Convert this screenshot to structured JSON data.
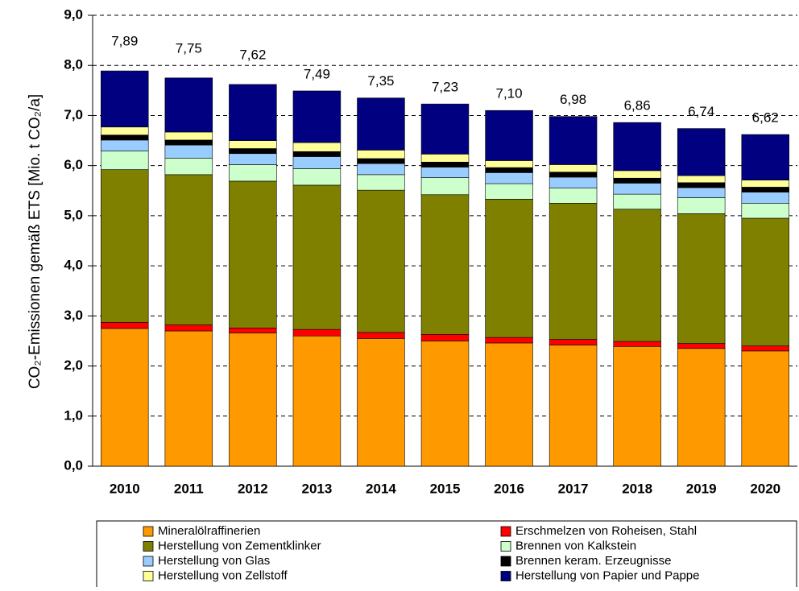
{
  "chart_data": {
    "type": "stacked_bar",
    "y_label": "CO₂-Emissionen gemäß ETS [Mio. t CO₂/a]",
    "categories": [
      "2010",
      "2011",
      "2012",
      "2013",
      "2014",
      "2015",
      "2016",
      "2017",
      "2018",
      "2019",
      "2020"
    ],
    "series": [
      {
        "name": "Mineralölraffinerien",
        "color": "#FF9900",
        "values": [
          2.75,
          2.7,
          2.66,
          2.6,
          2.55,
          2.5,
          2.46,
          2.42,
          2.39,
          2.35,
          2.3
        ]
      },
      {
        "name": "Erschmelzen von Roheisen, Stahl",
        "color": "#FF0000",
        "values": [
          0.12,
          0.12,
          0.1,
          0.13,
          0.12,
          0.13,
          0.11,
          0.11,
          0.1,
          0.1,
          0.1
        ]
      },
      {
        "name": "Herstellung von Zementklinker",
        "color": "#808000",
        "values": [
          3.05,
          3.0,
          2.93,
          2.88,
          2.84,
          2.79,
          2.76,
          2.72,
          2.64,
          2.59,
          2.55
        ]
      },
      {
        "name": "Brennen von Kalkstein",
        "color": "#CCFFCC",
        "values": [
          0.37,
          0.33,
          0.33,
          0.33,
          0.31,
          0.34,
          0.31,
          0.3,
          0.3,
          0.32,
          0.3
        ]
      },
      {
        "name": "Herstellung von Glas",
        "color": "#99CCFF",
        "values": [
          0.22,
          0.26,
          0.22,
          0.24,
          0.22,
          0.21,
          0.22,
          0.22,
          0.22,
          0.2,
          0.22
        ]
      },
      {
        "name": "Brennen keram. Erzeugnisse",
        "color": "#000000",
        "values": [
          0.1,
          0.1,
          0.1,
          0.1,
          0.1,
          0.1,
          0.1,
          0.1,
          0.1,
          0.1,
          0.1
        ]
      },
      {
        "name": "Herstellung von Zellstoff",
        "color": "#FFFF99",
        "values": [
          0.16,
          0.16,
          0.16,
          0.18,
          0.17,
          0.16,
          0.14,
          0.15,
          0.15,
          0.14,
          0.14
        ]
      },
      {
        "name": "Herstellung von Papier und Pappe",
        "color": "#000080",
        "values": [
          1.12,
          1.08,
          1.12,
          1.03,
          1.04,
          1.0,
          1.0,
          0.96,
          0.96,
          0.94,
          0.91
        ]
      }
    ],
    "totals": [
      7.89,
      7.75,
      7.62,
      7.49,
      7.35,
      7.23,
      7.1,
      6.98,
      6.86,
      6.74,
      6.62
    ],
    "total_labels": [
      "7,89",
      "7,75",
      "7,62",
      "7,49",
      "7,35",
      "7,23",
      "7,10",
      "6,98",
      "6,86",
      "6,74",
      "6,62"
    ],
    "ylim": [
      0,
      9
    ],
    "yticks": [
      {
        "value": 0,
        "label": "0,0"
      },
      {
        "value": 1,
        "label": "1,0"
      },
      {
        "value": 2,
        "label": "2,0"
      },
      {
        "value": 3,
        "label": "3,0"
      },
      {
        "value": 4,
        "label": "4,0"
      },
      {
        "value": 5,
        "label": "5,0"
      },
      {
        "value": 6,
        "label": "6,0"
      },
      {
        "value": 7,
        "label": "7,0"
      },
      {
        "value": 8,
        "label": "8,0"
      },
      {
        "value": 9,
        "label": "9,0"
      }
    ],
    "grid": true
  }
}
